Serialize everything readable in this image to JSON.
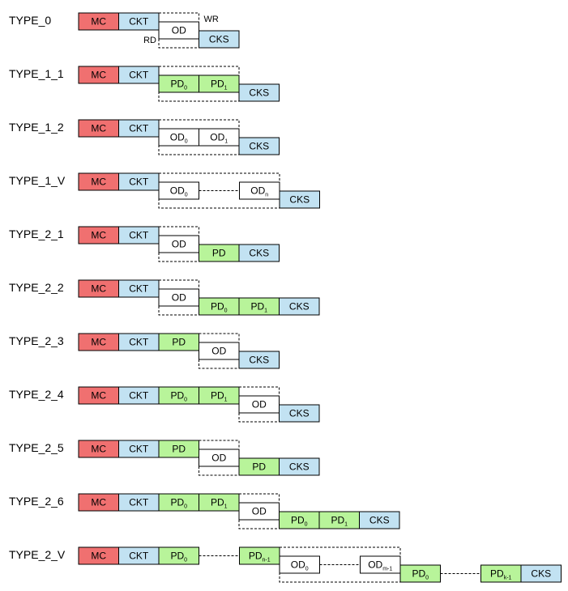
{
  "colors": {
    "MC": "#f07070",
    "CKT": "#c2e2f2",
    "CKS": "#c2e2f2",
    "PD": "#b8f49a",
    "OD": "#ffffff"
  },
  "rows": [
    {
      "label": "TYPE_0",
      "top": [
        {
          "t": "MC"
        },
        {
          "t": "CKT"
        }
      ],
      "bottom": [
        {
          "t": "OD"
        }
      ],
      "tail": [
        {
          "t": "CKS"
        }
      ],
      "annotations": {
        "wr": "WR",
        "rd": "RD"
      }
    },
    {
      "label": "TYPE_1_1",
      "top": [
        {
          "t": "MC"
        },
        {
          "t": "CKT"
        }
      ],
      "bottom": [
        {
          "t": "PD",
          "sub": "0"
        },
        {
          "t": "PD",
          "sub": "1"
        }
      ],
      "tail": [
        {
          "t": "CKS"
        }
      ]
    },
    {
      "label": "TYPE_1_2",
      "top": [
        {
          "t": "MC"
        },
        {
          "t": "CKT"
        }
      ],
      "bottom": [
        {
          "t": "OD",
          "sub": "0"
        },
        {
          "t": "OD",
          "sub": "1"
        }
      ],
      "tail": [
        {
          "t": "CKS"
        }
      ]
    },
    {
      "label": "TYPE_1_V",
      "top": [
        {
          "t": "MC"
        },
        {
          "t": "CKT"
        }
      ],
      "bottom": [
        {
          "t": "OD",
          "sub": "0"
        },
        {
          "gap": true
        },
        {
          "t": "OD",
          "sub": "n"
        }
      ],
      "tail": [
        {
          "t": "CKS"
        }
      ]
    },
    {
      "label": "TYPE_2_1",
      "top": [
        {
          "t": "MC"
        },
        {
          "t": "CKT"
        }
      ],
      "bottom": [
        {
          "t": "OD"
        }
      ],
      "tail": [
        {
          "t": "PD"
        },
        {
          "t": "CKS"
        }
      ]
    },
    {
      "label": "TYPE_2_2",
      "top": [
        {
          "t": "MC"
        },
        {
          "t": "CKT"
        }
      ],
      "bottom": [
        {
          "t": "OD"
        }
      ],
      "tail": [
        {
          "t": "PD",
          "sub": "0"
        },
        {
          "t": "PD",
          "sub": "1"
        },
        {
          "t": "CKS"
        }
      ]
    },
    {
      "label": "TYPE_2_3",
      "top": [
        {
          "t": "MC"
        },
        {
          "t": "CKT"
        },
        {
          "t": "PD"
        }
      ],
      "bottom": [
        {
          "t": "OD"
        }
      ],
      "tail": [
        {
          "t": "CKS"
        }
      ]
    },
    {
      "label": "TYPE_2_4",
      "top": [
        {
          "t": "MC"
        },
        {
          "t": "CKT"
        },
        {
          "t": "PD",
          "sub": "0"
        },
        {
          "t": "PD",
          "sub": "1"
        }
      ],
      "bottom": [
        {
          "t": "OD"
        }
      ],
      "tail": [
        {
          "t": "CKS"
        }
      ]
    },
    {
      "label": "TYPE_2_5",
      "top": [
        {
          "t": "MC"
        },
        {
          "t": "CKT"
        },
        {
          "t": "PD"
        }
      ],
      "bottom": [
        {
          "t": "OD"
        }
      ],
      "tail": [
        {
          "t": "PD"
        },
        {
          "t": "CKS"
        }
      ]
    },
    {
      "label": "TYPE_2_6",
      "top": [
        {
          "t": "MC"
        },
        {
          "t": "CKT"
        },
        {
          "t": "PD",
          "sub": "0"
        },
        {
          "t": "PD",
          "sub": "1"
        }
      ],
      "bottom": [
        {
          "t": "OD"
        }
      ],
      "tail": [
        {
          "t": "PD",
          "sub": "0"
        },
        {
          "t": "PD",
          "sub": "1"
        },
        {
          "t": "CKS"
        }
      ]
    },
    {
      "label": "TYPE_2_V",
      "top": [
        {
          "t": "MC"
        },
        {
          "t": "CKT"
        },
        {
          "t": "PD",
          "sub": "0"
        },
        {
          "gap": true
        },
        {
          "t": "PD",
          "sub": "n-1"
        }
      ],
      "bottom": [
        {
          "t": "OD",
          "sub": "0"
        },
        {
          "gap": true
        },
        {
          "t": "OD",
          "sub": "m-1"
        }
      ],
      "tail": [
        {
          "t": "PD",
          "sub": "0"
        },
        {
          "gap": true
        },
        {
          "t": "PD",
          "sub": "k-1"
        },
        {
          "t": "CKS"
        }
      ]
    }
  ]
}
